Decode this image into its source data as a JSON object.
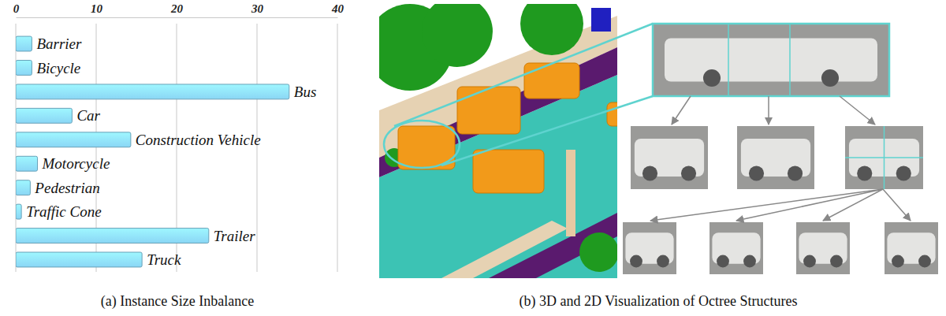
{
  "chart_data": {
    "type": "bar",
    "orientation": "horizontal",
    "title": "(a) Instance Size Inbalance",
    "categories": [
      "Barrier",
      "Bicycle",
      "Bus",
      "Car",
      "Construction Vehicle",
      "Motorcycle",
      "Pedestrian",
      "Traffic Cone",
      "Trailer",
      "Truck"
    ],
    "values": [
      2,
      2,
      34,
      7,
      14.3,
      2.7,
      1.8,
      0.7,
      24,
      15.7
    ],
    "color": "#8ad6f5",
    "xlim": [
      0,
      40
    ],
    "xticks": [
      0,
      10,
      20,
      30,
      40
    ],
    "grid": true
  },
  "panel_b": {
    "caption": "(b) 3D and 2D Visualization of Octree Structures"
  }
}
